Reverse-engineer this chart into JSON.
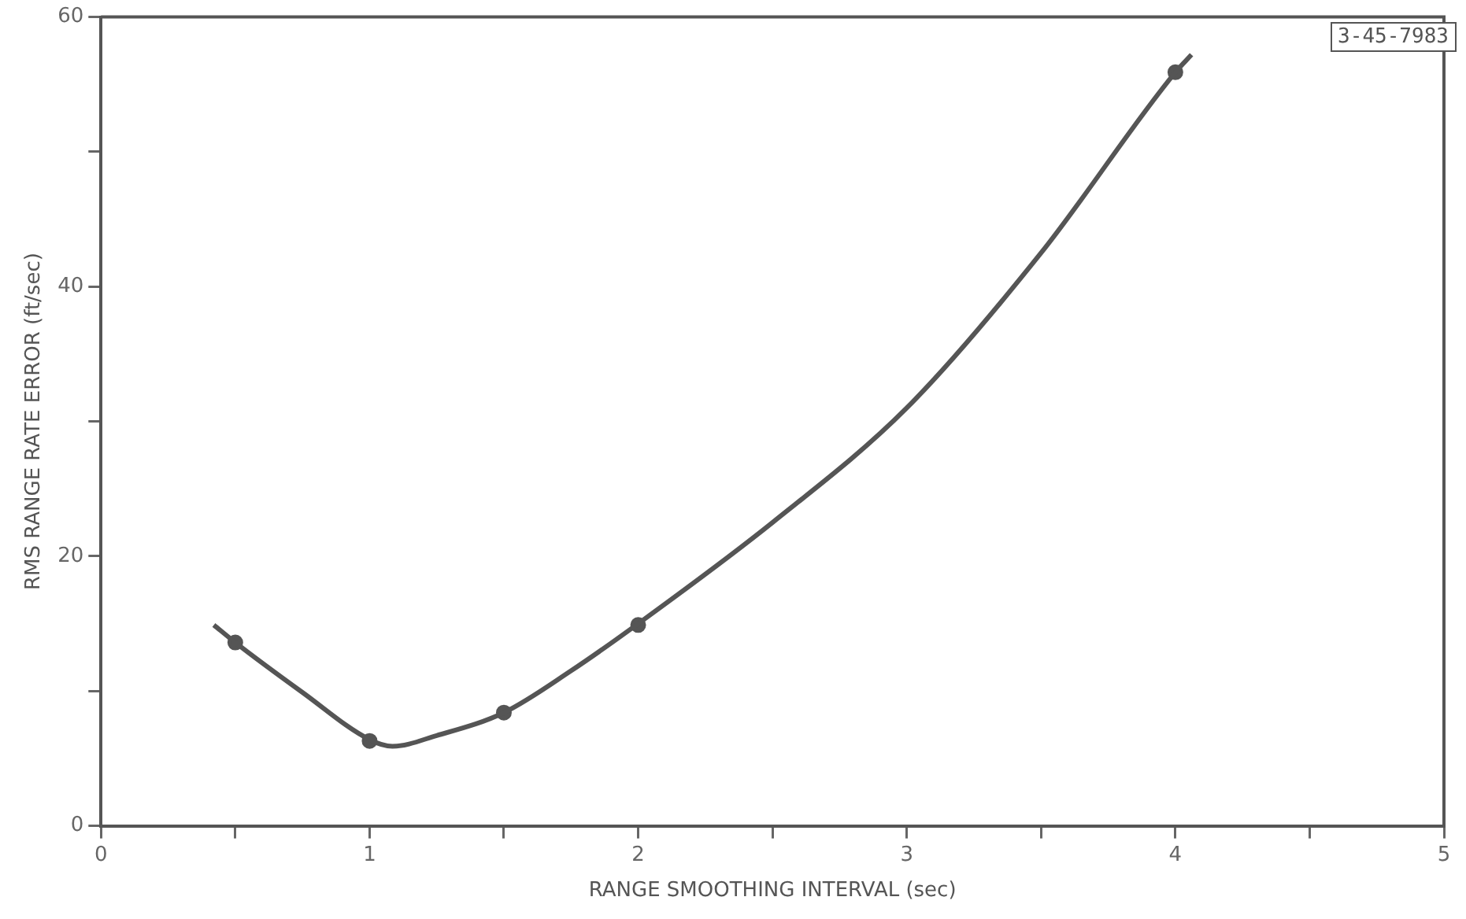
{
  "chart_data": {
    "type": "line",
    "xlabel": "RANGE SMOOTHING INTERVAL (sec)",
    "ylabel": "RMS RANGE RATE ERROR (ft/sec)",
    "annotations": [
      "3-45-7983"
    ],
    "xlim": [
      0,
      5
    ],
    "xticks": [
      0,
      {
        "value": 0.5,
        "label": null
      },
      1,
      {
        "value": 1.5,
        "label": null
      },
      2,
      {
        "value": 2.5,
        "label": null
      },
      3,
      {
        "value": 3.5,
        "label": null
      },
      4,
      {
        "value": 4.5,
        "label": null
      },
      5
    ],
    "ylim": [
      0,
      60
    ],
    "yticks": [
      0,
      {
        "value": 10,
        "label": null
      },
      20,
      {
        "value": 30,
        "label": null
      },
      40,
      {
        "value": 50,
        "label": null
      },
      60
    ],
    "grid": false,
    "legend": false,
    "series": [
      {
        "type": "line",
        "color": "#555555",
        "marker": "none",
        "x": [
          0.42,
          0.5,
          0.75,
          1,
          1.085,
          1.25,
          1.5,
          1.75,
          2,
          2.5,
          3,
          3.5,
          4,
          4.06
        ],
        "values": [
          14.9,
          13.6,
          9.9,
          6.4,
          5.9,
          6.7,
          8.4,
          11.5,
          15,
          22.5,
          31,
          42.5,
          55.9,
          57.2
        ]
      },
      {
        "type": "scatter",
        "color": "#555555",
        "marker": "circle",
        "x": [
          0.5,
          1,
          1.5,
          2,
          4
        ],
        "values": [
          13.6,
          6.3,
          8.4,
          14.9,
          55.9
        ]
      }
    ]
  }
}
